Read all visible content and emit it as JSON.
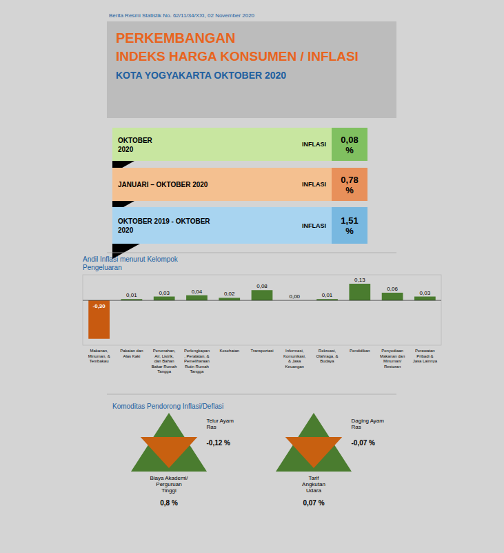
{
  "chart_data": {
    "type": "bar",
    "title": "Andil Inflasi menurut Kelompok\nPengeluaran",
    "subtitle": "Berita Resmi Statistik No. 62/11/34/XXI, 02 November 2020",
    "categories": [
      "Makanan,\nMinuman, &\nTembakau",
      "Pakaian dan\nAlas Kaki",
      "Perumahan,\nAir, Listrik,\ndan Bahan\nBakar Rumah\nTangga",
      "Perlengkapan\n, Peralatan, &\nPemeliharaan\nRutin Rumah\nTangga",
      "Kesehatan",
      "Transportasi",
      "Informasi,\nKomunikasi,\n& Jasa\nKeuangan",
      "Rekreasi,\nOlahraga, &\nBudaya",
      "Pendidikan",
      "Penyediaan\nMakanan dan\nMinuman/\nRestoran",
      "Perawatan\nPribadi &\nJasa Lainnya"
    ],
    "values": [
      -0.3,
      0.01,
      0.03,
      0.04,
      0.02,
      0.08,
      0.0,
      0.01,
      0.13,
      0.06,
      0.03
    ],
    "value_labels": [
      "-0,30",
      "0,01",
      "0,03",
      "0,04",
      "0,02",
      "0,08",
      "0,00",
      "0,01",
      "0,13",
      "0,06",
      "0,03"
    ],
    "colors": [
      "#c85a10",
      "#4a7c2f",
      "#4a7c2f",
      "#4a7c2f",
      "#4a7c2f",
      "#4a7c2f",
      "#4a7c2f",
      "#4a7c2f",
      "#4a7c2f",
      "#4a7c2f",
      "#4a7c2f"
    ],
    "ylim": [
      -0.35,
      0.2
    ],
    "data_labels": true,
    "tick_labels": "x",
    "annotations": [
      {
        "text": "PERKEMBANGAN",
        "color": "#e8641e"
      },
      {
        "text": "INDEKS HARGA KONSUMEN / INFLASI",
        "color": "#e8641e"
      },
      {
        "text": "KOTA YOGYAKARTA  OKTOBER 2020",
        "color": "#2060a0"
      },
      {
        "text": "OKTOBER\n2020",
        "color": "#c8e6a0"
      },
      {
        "text": "INFLASI"
      },
      {
        "text": "0,08\n%",
        "color": "#80c060"
      },
      {
        "text": "JANUARI – OKTOBER 2020",
        "color": "#f4c090"
      },
      {
        "text": "INFLASI"
      },
      {
        "text": "0,78\n%",
        "color": "#e8905a"
      },
      {
        "text": "OKTOBER 2019 - OKTOBER\n2020",
        "color": "#a8d4f0"
      },
      {
        "text": "INFLASI"
      },
      {
        "text": "1,51\n%",
        "color": "#78b8e0"
      },
      {
        "text": "Komoditas Pendorong Inflasi/Deflasi",
        "color": "#2060a0"
      },
      {
        "text": "Biaya Akademi/\nPerguruan\nTinggi",
        "color": "#4a7c2f"
      },
      {
        "text": "0,8 %"
      },
      {
        "text": "Telur Ayam\nRas",
        "color": "#c86010"
      },
      {
        "text": "-0,12 %"
      },
      {
        "text": "Tarif\nAngkutan\nUdara",
        "color": "#4a7c2f"
      },
      {
        "text": "0,07 %"
      },
      {
        "text": "Daging Ayam\nRas",
        "color": "#c86010"
      },
      {
        "text": "-0,07 %"
      }
    ]
  }
}
